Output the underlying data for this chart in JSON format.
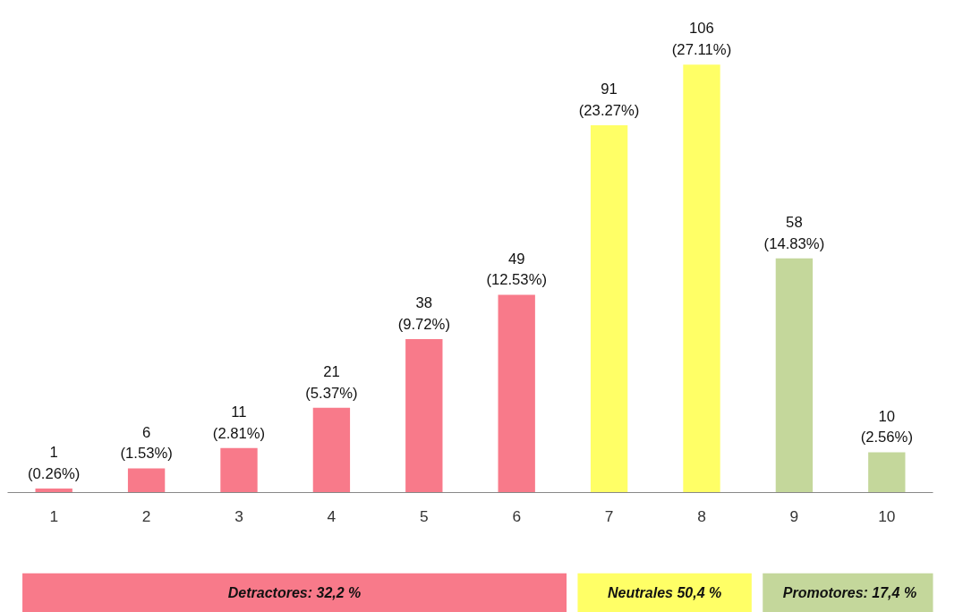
{
  "chart_data": {
    "type": "bar",
    "categories": [
      "1",
      "2",
      "3",
      "4",
      "5",
      "6",
      "7",
      "8",
      "9",
      "10"
    ],
    "legend": "bottom",
    "grid": false,
    "series": [
      {
        "name": "Detractores: 32,2 %",
        "color": "#f87a8a",
        "values": [
          1,
          6,
          11,
          21,
          38,
          49,
          null,
          null,
          null,
          null
        ],
        "value_labels": [
          "1\n(0.26%)",
          "6\n(1.53%)",
          "11\n(2.81%)",
          "21\n(5.37%)",
          "38\n(9.72%)",
          "49\n(12.53%)",
          null,
          null,
          null,
          null
        ]
      },
      {
        "name": "Neutrales 50,4 %",
        "color": "#ffff66",
        "values": [
          null,
          null,
          null,
          null,
          null,
          null,
          91,
          106,
          null,
          null
        ],
        "value_labels": [
          null,
          null,
          null,
          null,
          null,
          null,
          "91\n(23.27%)",
          "106\n(27.11%)",
          null,
          null
        ]
      },
      {
        "name": "Promotores: 17,4 %",
        "color": "#c4d79b",
        "values": [
          null,
          null,
          null,
          null,
          null,
          null,
          null,
          null,
          58,
          10
        ],
        "value_labels": [
          null,
          null,
          null,
          null,
          null,
          null,
          null,
          null,
          "58\n(14.83%)",
          "10\n(2.56%)"
        ]
      }
    ]
  }
}
